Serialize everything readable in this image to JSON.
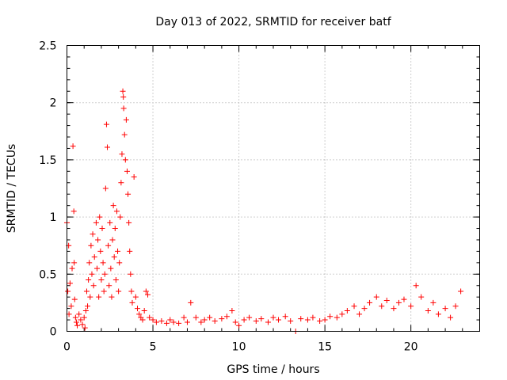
{
  "chart_data": {
    "type": "scatter",
    "title": "Day 013 of 2022, SRMTID for receiver batf",
    "xlabel": "GPS time / hours",
    "ylabel": "SRMTID / TECUs",
    "xlim": [
      0,
      24
    ],
    "ylim": [
      0,
      2.5
    ],
    "xticks": [
      0,
      5,
      10,
      15,
      20
    ],
    "xtick_labels": [
      "0",
      "5",
      "10",
      "15",
      "20"
    ],
    "yticks": [
      0,
      0.5,
      1,
      1.5,
      2,
      2.5
    ],
    "ytick_labels": [
      "0",
      "0.5",
      "1",
      "1.5",
      "2",
      "2.5"
    ],
    "grid": true,
    "marker": "+",
    "color": "#ff0000",
    "series": [
      {
        "name": "SRMTID",
        "points": [
          [
            0.0,
            0.95
          ],
          [
            0.05,
            0.35
          ],
          [
            0.1,
            0.75
          ],
          [
            0.12,
            0.15
          ],
          [
            0.18,
            0.42
          ],
          [
            0.25,
            0.22
          ],
          [
            0.3,
            0.55
          ],
          [
            0.35,
            1.62
          ],
          [
            0.4,
            1.05
          ],
          [
            0.42,
            0.6
          ],
          [
            0.45,
            0.28
          ],
          [
            0.5,
            0.12
          ],
          [
            0.55,
            0.08
          ],
          [
            0.6,
            0.05
          ],
          [
            0.7,
            0.15
          ],
          [
            0.8,
            0.1
          ],
          [
            0.9,
            0.06
          ],
          [
            1.0,
            0.12
          ],
          [
            1.05,
            0.03
          ],
          [
            1.1,
            0.18
          ],
          [
            1.15,
            0.35
          ],
          [
            1.2,
            0.22
          ],
          [
            1.25,
            0.45
          ],
          [
            1.3,
            0.6
          ],
          [
            1.35,
            0.3
          ],
          [
            1.4,
            0.75
          ],
          [
            1.45,
            0.5
          ],
          [
            1.5,
            0.85
          ],
          [
            1.55,
            0.4
          ],
          [
            1.6,
            0.65
          ],
          [
            1.7,
            0.95
          ],
          [
            1.75,
            0.55
          ],
          [
            1.8,
            0.8
          ],
          [
            1.85,
            0.3
          ],
          [
            1.9,
            1.0
          ],
          [
            1.95,
            0.7
          ],
          [
            2.0,
            0.45
          ],
          [
            2.05,
            0.9
          ],
          [
            2.1,
            0.6
          ],
          [
            2.15,
            0.35
          ],
          [
            2.2,
            0.5
          ],
          [
            2.25,
            1.25
          ],
          [
            2.3,
            1.81
          ],
          [
            2.35,
            1.61
          ],
          [
            2.4,
            0.75
          ],
          [
            2.45,
            0.4
          ],
          [
            2.5,
            0.95
          ],
          [
            2.55,
            0.55
          ],
          [
            2.6,
            0.3
          ],
          [
            2.65,
            0.8
          ],
          [
            2.7,
            1.1
          ],
          [
            2.75,
            0.65
          ],
          [
            2.8,
            0.9
          ],
          [
            2.85,
            0.45
          ],
          [
            2.9,
            1.05
          ],
          [
            2.95,
            0.7
          ],
          [
            3.0,
            0.35
          ],
          [
            3.05,
            0.6
          ],
          [
            3.1,
            1.0
          ],
          [
            3.15,
            1.3
          ],
          [
            3.2,
            1.55
          ],
          [
            3.25,
            2.1
          ],
          [
            3.28,
            2.05
          ],
          [
            3.3,
            1.95
          ],
          [
            3.35,
            1.72
          ],
          [
            3.4,
            1.5
          ],
          [
            3.45,
            1.85
          ],
          [
            3.5,
            1.4
          ],
          [
            3.55,
            1.2
          ],
          [
            3.6,
            0.95
          ],
          [
            3.65,
            0.7
          ],
          [
            3.7,
            0.5
          ],
          [
            3.75,
            0.35
          ],
          [
            3.8,
            0.25
          ],
          [
            3.9,
            1.35
          ],
          [
            4.0,
            0.3
          ],
          [
            4.1,
            0.2
          ],
          [
            4.2,
            0.15
          ],
          [
            4.3,
            0.12
          ],
          [
            4.4,
            0.1
          ],
          [
            4.5,
            0.18
          ],
          [
            4.6,
            0.35
          ],
          [
            4.7,
            0.32
          ],
          [
            4.8,
            0.12
          ],
          [
            5.0,
            0.1
          ],
          [
            5.2,
            0.08
          ],
          [
            5.5,
            0.09
          ],
          [
            5.8,
            0.07
          ],
          [
            6.0,
            0.1
          ],
          [
            6.2,
            0.08
          ],
          [
            6.5,
            0.07
          ],
          [
            6.8,
            0.12
          ],
          [
            7.0,
            0.08
          ],
          [
            7.2,
            0.25
          ],
          [
            7.5,
            0.12
          ],
          [
            7.8,
            0.08
          ],
          [
            8.0,
            0.1
          ],
          [
            8.3,
            0.12
          ],
          [
            8.6,
            0.09
          ],
          [
            9.0,
            0.11
          ],
          [
            9.3,
            0.13
          ],
          [
            9.6,
            0.18
          ],
          [
            9.8,
            0.08
          ],
          [
            10.0,
            0.05
          ],
          [
            10.3,
            0.1
          ],
          [
            10.6,
            0.12
          ],
          [
            11.0,
            0.09
          ],
          [
            11.3,
            0.11
          ],
          [
            11.7,
            0.08
          ],
          [
            12.0,
            0.12
          ],
          [
            12.3,
            0.1
          ],
          [
            12.7,
            0.13
          ],
          [
            13.0,
            0.09
          ],
          [
            13.3,
            0.0
          ],
          [
            13.6,
            0.11
          ],
          [
            14.0,
            0.1
          ],
          [
            14.3,
            0.12
          ],
          [
            14.7,
            0.09
          ],
          [
            15.0,
            0.1
          ],
          [
            15.3,
            0.13
          ],
          [
            15.7,
            0.12
          ],
          [
            16.0,
            0.15
          ],
          [
            16.3,
            0.18
          ],
          [
            16.7,
            0.22
          ],
          [
            17.0,
            0.15
          ],
          [
            17.3,
            0.2
          ],
          [
            17.6,
            0.25
          ],
          [
            18.0,
            0.3
          ],
          [
            18.3,
            0.22
          ],
          [
            18.6,
            0.27
          ],
          [
            19.0,
            0.2
          ],
          [
            19.3,
            0.25
          ],
          [
            19.6,
            0.28
          ],
          [
            20.0,
            0.22
          ],
          [
            20.3,
            0.4
          ],
          [
            20.6,
            0.3
          ],
          [
            21.0,
            0.18
          ],
          [
            21.3,
            0.25
          ],
          [
            21.6,
            0.15
          ],
          [
            22.0,
            0.2
          ],
          [
            22.3,
            0.12
          ],
          [
            22.6,
            0.22
          ],
          [
            22.9,
            0.35
          ]
        ]
      }
    ]
  }
}
